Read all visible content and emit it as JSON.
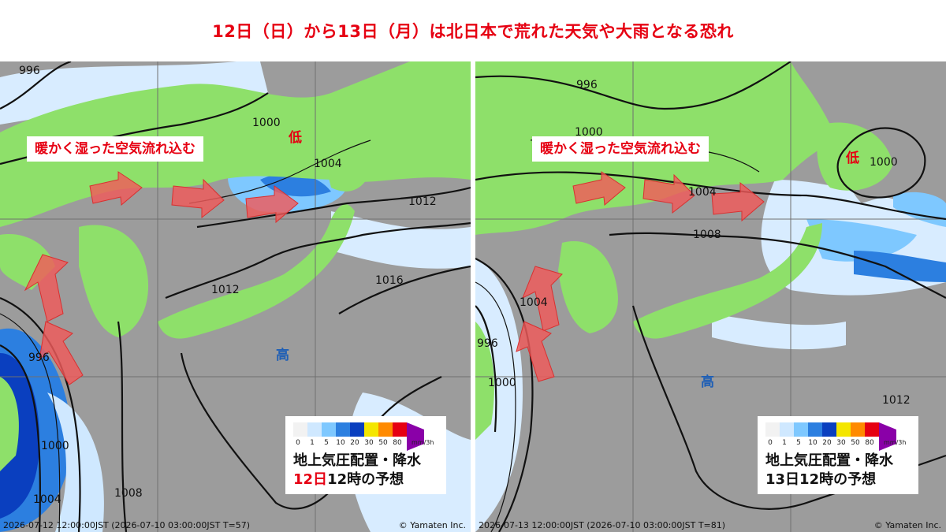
{
  "headline": "12日（日）から13日（月）は北日本で荒れた天気や大雨となる恐れ",
  "legend_scale": {
    "ticks": [
      "0",
      "1",
      "5",
      "10",
      "20",
      "30",
      "50",
      "80"
    ],
    "unit": "mm/3h",
    "colors": [
      "#f2f2f2",
      "#cfe8ff",
      "#7ec8ff",
      "#2c7fe0",
      "#0a3fbf",
      "#f4e600",
      "#ff8a00",
      "#e60012",
      "#8a00a8"
    ]
  },
  "colors": {
    "accent_red": "#e60012",
    "high_blue": "#1f5fb5",
    "sea_gray": "#9c9c9c",
    "land_green": "#8ee06a"
  },
  "panels": [
    {
      "callout": "暖かく湿った空気流れ込む",
      "low_label": "低",
      "high_label": "高",
      "isobars": [
        "996",
        "1000",
        "1004",
        "1012",
        "1016",
        "1012",
        "996",
        "1000",
        "1004",
        "1008"
      ],
      "caption_line1": "地上気圧配置・降水",
      "caption_date": "12日",
      "caption_rest": "12時の予想",
      "footer": "2026-07-12 12:00:00JST (2026-07-10 03:00:00JST T=57)",
      "copyright": "© Yamaten Inc."
    },
    {
      "callout": "暖かく湿った空気流れ込む",
      "low_label": "低",
      "high_label": "高",
      "isobars": [
        "996",
        "1000",
        "1004",
        "1008",
        "1004",
        "996",
        "1000",
        "1012",
        "1000"
      ],
      "caption_line1": "地上気圧配置・降水",
      "caption_line2": "13日12時の予想",
      "footer": "2026-07-13 12:00:00JST (2026-07-10 03:00:00JST T=81)",
      "copyright": "© Yamaten Inc."
    }
  ]
}
